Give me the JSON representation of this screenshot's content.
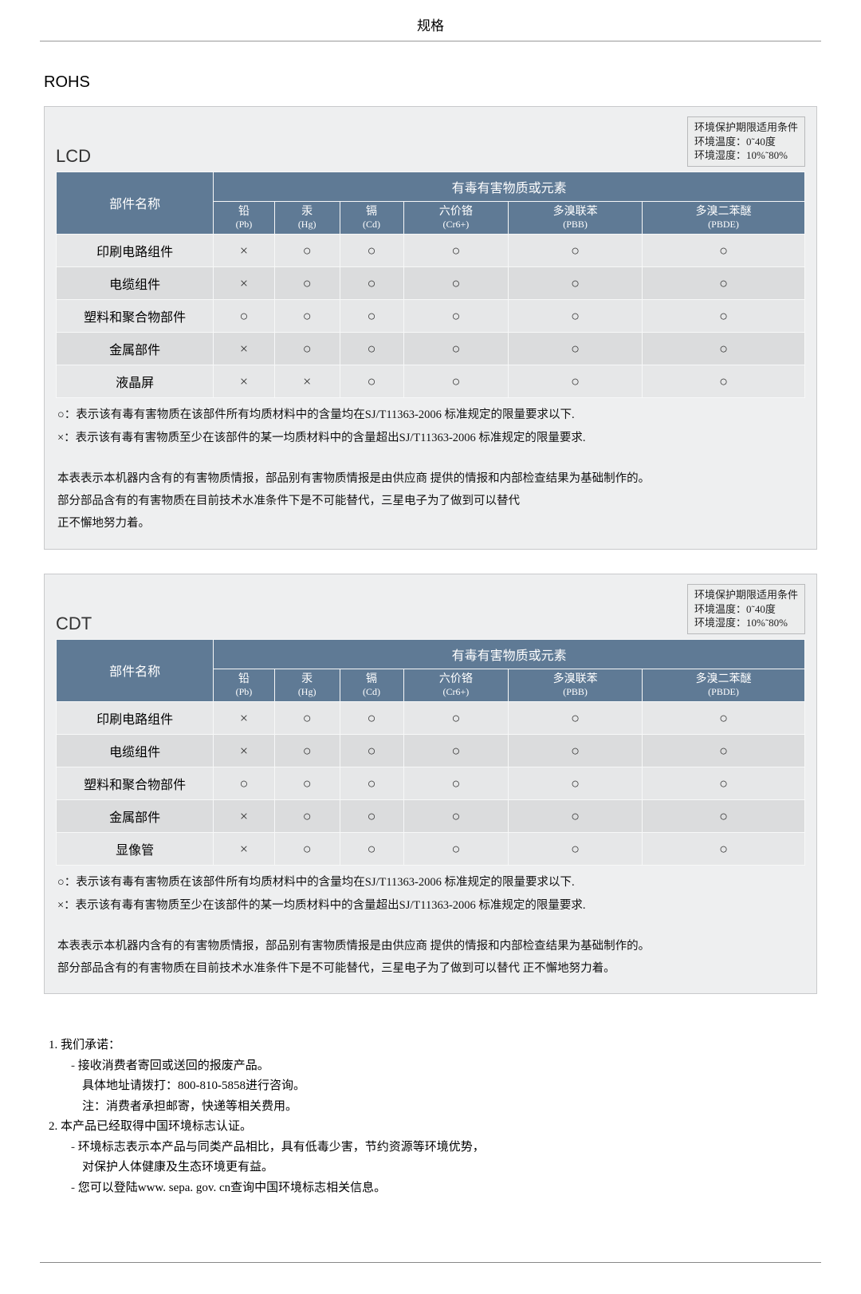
{
  "page_title": "规格",
  "rohs_heading": "ROHS",
  "env_box": {
    "line1": "环境保护期限适用条件",
    "line2": "环境温度：0˜40度",
    "line3": "环境湿度：10%˜80%"
  },
  "table_headers": {
    "part_name": "部件名称",
    "toxic_header": "有毒有害物质或元素",
    "cols": [
      {
        "cn": "铅",
        "sym": "(Pb)"
      },
      {
        "cn": "汞",
        "sym": "(Hg)"
      },
      {
        "cn": "镉",
        "sym": "(Cd)"
      },
      {
        "cn": "六价铬",
        "sym": "(Cr6+)"
      },
      {
        "cn": "多溴联苯",
        "sym": "(PBB)"
      },
      {
        "cn": "多溴二苯醚",
        "sym": "(PBDE)"
      }
    ]
  },
  "lcd": {
    "title": "LCD",
    "rows": [
      {
        "name": "印刷电路组件",
        "v": [
          "×",
          "○",
          "○",
          "○",
          "○",
          "○"
        ]
      },
      {
        "name": "电缆组件",
        "v": [
          "×",
          "○",
          "○",
          "○",
          "○",
          "○"
        ]
      },
      {
        "name": "塑料和聚合物部件",
        "v": [
          "○",
          "○",
          "○",
          "○",
          "○",
          "○"
        ]
      },
      {
        "name": "金属部件",
        "v": [
          "×",
          "○",
          "○",
          "○",
          "○",
          "○"
        ]
      },
      {
        "name": "液晶屏",
        "v": [
          "×",
          "×",
          "○",
          "○",
          "○",
          "○"
        ]
      }
    ],
    "note1": "○：表示该有毒有害物质在该部件所有均质材料中的含量均在SJ/T11363-2006 标准规定的限量要求以下.",
    "note2": "×：表示该有毒有害物质至少在该部件的某一均质材料中的含量超出SJ/T11363-2006 标准规定的限量要求.",
    "note3": "本表表示本机器内含有的有害物质情报，部品别有害物质情报是由供应商 提供的情报和内部检查结果为基础制作的。",
    "note4": "部分部品含有的有害物质在目前技术水准条件下是不可能替代，三星电子为了做到可以替代",
    "note5": "正不懈地努力着。"
  },
  "cdt": {
    "title": "CDT",
    "rows": [
      {
        "name": "印刷电路组件",
        "v": [
          "×",
          "○",
          "○",
          "○",
          "○",
          "○"
        ]
      },
      {
        "name": "电缆组件",
        "v": [
          "×",
          "○",
          "○",
          "○",
          "○",
          "○"
        ]
      },
      {
        "name": "塑料和聚合物部件",
        "v": [
          "○",
          "○",
          "○",
          "○",
          "○",
          "○"
        ]
      },
      {
        "name": "金属部件",
        "v": [
          "×",
          "○",
          "○",
          "○",
          "○",
          "○"
        ]
      },
      {
        "name": "显像管",
        "v": [
          "×",
          "○",
          "○",
          "○",
          "○",
          "○"
        ]
      }
    ],
    "note1": "○：表示该有毒有害物质在该部件所有均质材料中的含量均在SJ/T11363-2006 标准规定的限量要求以下.",
    "note2": "×：表示该有毒有害物质至少在该部件的某一均质材料中的含量超出SJ/T11363-2006 标准规定的限量要求.",
    "note3": "本表表示本机器内含有的有害物质情报，部品别有害物质情报是由供应商 提供的情报和内部检查结果为基础制作的。",
    "note4": "部分部品含有的有害物质在目前技术水准条件下是不可能替代，三星电子为了做到可以替代 正不懈地努力着。"
  },
  "commit": {
    "l1": "1. 我们承诺：",
    "l1a": "接收消费者寄回或送回的报废产品。",
    "l1b": "具体地址请拨打：800-810-5858进行咨询。",
    "l1c": "注：消费者承担邮寄，快递等相关费用。",
    "l2": "2. 本产品已经取得中国环境标志认证。",
    "l2a": "环境标志表示本产品与同类产品相比，具有低毒少害，节约资源等环境优势，",
    "l2b": "对保护人体健康及生态环境更有益。",
    "l2c": "您可以登陆www. sepa. gov. cn查询中国环境标志相关信息。"
  }
}
